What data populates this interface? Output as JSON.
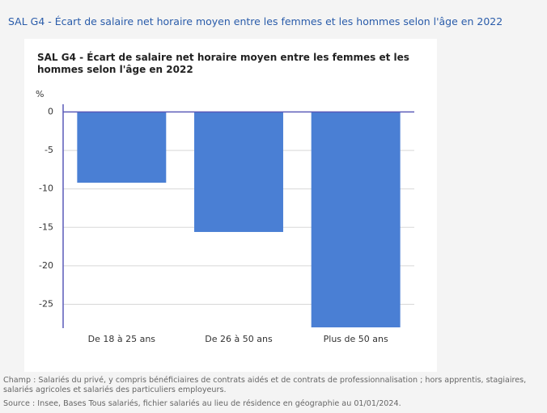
{
  "page_title": "SAL G4 - Écart de salaire net horaire moyen entre les femmes et les hommes selon l'âge en 2022",
  "chart_data": {
    "type": "bar",
    "title": "SAL G4 - Écart de salaire net horaire moyen entre les femmes et les hommes selon l'âge en 2022",
    "y_unit": "%",
    "categories": [
      "De 18 à 25 ans",
      "De 26 à 50 ans",
      "Plus de 50 ans"
    ],
    "values": [
      -9.2,
      -15.6,
      -28.0
    ],
    "color": "#4a7fd4",
    "ylim": [
      -28.1,
      1
    ],
    "yticks": [
      0,
      -5,
      -10,
      -15,
      -20,
      -25
    ],
    "grid": true
  },
  "notes": [
    "Champ : Salariés du privé, y compris bénéficiaires de contrats aidés et de contrats de professionnalisation ; hors apprentis, stagiaires, salariés agricoles et salariés des particuliers employeurs.",
    "Source : Insee, Bases Tous salariés, fichier salariés au lieu de résidence en géographie au 01/01/2024."
  ]
}
